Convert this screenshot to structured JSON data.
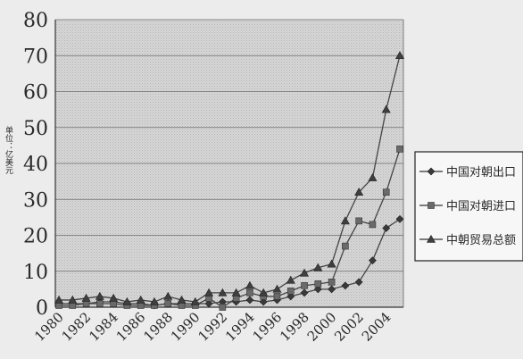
{
  "chart_data": {
    "type": "line",
    "title": "",
    "xlabel": "",
    "ylabel": "单位：亿美元",
    "ylim": [
      0,
      80
    ],
    "yticks": [
      0,
      10,
      20,
      30,
      40,
      50,
      60,
      70,
      80
    ],
    "x": [
      1980,
      1981,
      1982,
      1983,
      1984,
      1985,
      1986,
      1987,
      1988,
      1989,
      1990,
      1991,
      1992,
      1993,
      1994,
      1995,
      1996,
      1997,
      1998,
      1999,
      2000,
      2001,
      2002,
      2003,
      2004,
      2005
    ],
    "x_tick_labels": [
      "1980",
      "1982",
      "1984",
      "1986",
      "1988",
      "1990",
      "1992",
      "1994",
      "1996",
      "1998",
      "2000",
      "2002",
      "2004"
    ],
    "grid": true,
    "legend_position": "right",
    "series": [
      {
        "name": "中国对朝出口",
        "marker": "diamond",
        "values": [
          1.0,
          1.0,
          1.0,
          1.5,
          1.5,
          1.0,
          1.0,
          0.5,
          1.0,
          1.0,
          1.0,
          1.0,
          1.5,
          1.5,
          2.0,
          1.5,
          2.0,
          3.0,
          4.0,
          5.0,
          5.0,
          6.0,
          7.0,
          13.0,
          22.0,
          24.5
        ]
      },
      {
        "name": "中国对朝进口",
        "marker": "square",
        "values": [
          0.5,
          0.5,
          1.0,
          1.0,
          1.0,
          0.5,
          0.5,
          0.5,
          1.0,
          0.5,
          0.5,
          2.5,
          0.0,
          2.5,
          4.0,
          3.0,
          3.0,
          4.5,
          6.0,
          6.5,
          7.0,
          17.0,
          24.0,
          23.0,
          32.0,
          44.0
        ]
      },
      {
        "name": "中朝贸易总额",
        "marker": "triangle",
        "values": [
          2.0,
          2.0,
          2.5,
          3.0,
          2.5,
          1.5,
          2.0,
          1.5,
          3.0,
          2.0,
          1.5,
          4.0,
          4.0,
          4.0,
          6.0,
          4.0,
          5.0,
          7.5,
          9.5,
          11.0,
          12.0,
          24.0,
          32.0,
          36.0,
          55.0,
          70.0
        ]
      }
    ]
  }
}
